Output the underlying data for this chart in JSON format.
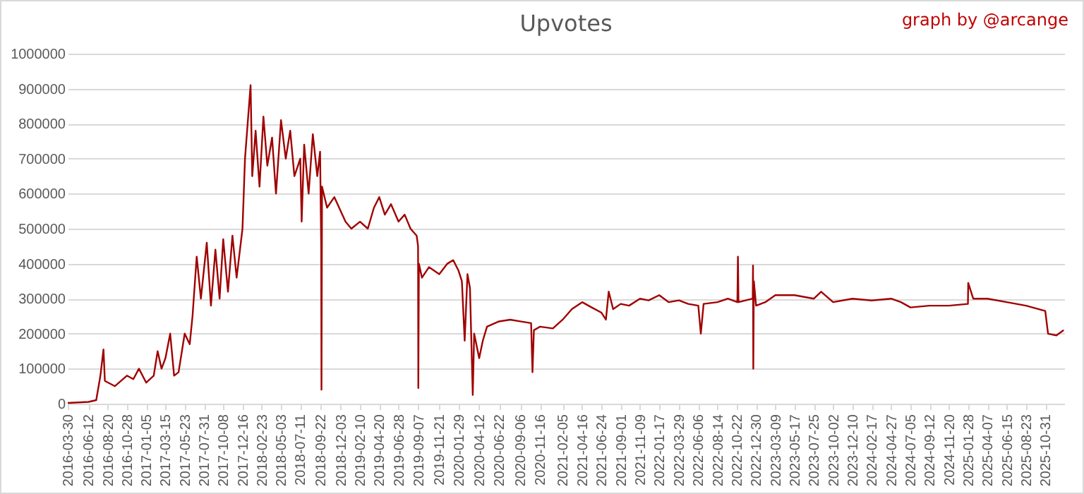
{
  "chart_data": {
    "type": "line",
    "title": "Upvotes",
    "annotations": [
      "graph by @arcange"
    ],
    "x": [
      "2016-03-30",
      "2016-06-12",
      "2016-07-10",
      "2016-07-25",
      "2016-08-05",
      "2016-08-10",
      "2016-09-15",
      "2016-10-28",
      "2016-11-20",
      "2016-12-10",
      "2017-01-05",
      "2017-02-01",
      "2017-02-15",
      "2017-03-01",
      "2017-03-15",
      "2017-04-01",
      "2017-04-15",
      "2017-05-01",
      "2017-05-23",
      "2017-06-10",
      "2017-06-20",
      "2017-07-05",
      "2017-07-20",
      "2017-08-10",
      "2017-08-25",
      "2017-09-10",
      "2017-09-25",
      "2017-10-08",
      "2017-10-25",
      "2017-11-10",
      "2017-11-25",
      "2017-12-16",
      "2017-12-25",
      "2018-01-14",
      "2018-01-20",
      "2018-02-01",
      "2018-02-15",
      "2018-03-01",
      "2018-03-15",
      "2018-04-01",
      "2018-04-15",
      "2018-05-03",
      "2018-05-20",
      "2018-06-05",
      "2018-06-20",
      "2018-07-11",
      "2018-07-16",
      "2018-07-25",
      "2018-08-10",
      "2018-08-25",
      "2018-09-10",
      "2018-09-20",
      "2018-09-24",
      "2018-09-25",
      "2018-09-27",
      "2018-10-15",
      "2018-11-10",
      "2018-12-03",
      "2018-12-20",
      "2019-01-10",
      "2019-02-10",
      "2019-03-10",
      "2019-04-01",
      "2019-04-20",
      "2019-05-10",
      "2019-06-01",
      "2019-06-28",
      "2019-07-20",
      "2019-08-10",
      "2019-09-01",
      "2019-09-06",
      "2019-09-07",
      "2019-09-09",
      "2019-09-20",
      "2019-10-15",
      "2019-11-21",
      "2019-12-20",
      "2020-01-10",
      "2020-01-29",
      "2020-02-10",
      "2020-02-20",
      "2020-03-01",
      "2020-03-10",
      "2020-03-20",
      "2020-03-25",
      "2020-04-12",
      "2020-04-25",
      "2020-05-10",
      "2020-06-22",
      "2020-08-01",
      "2020-09-06",
      "2020-10-15",
      "2020-10-20",
      "2020-10-25",
      "2020-11-16",
      "2021-01-01",
      "2021-02-05",
      "2021-03-10",
      "2021-04-16",
      "2021-05-20",
      "2021-06-24",
      "2021-07-10",
      "2021-07-20",
      "2021-08-05",
      "2021-09-01",
      "2021-10-01",
      "2021-11-09",
      "2021-12-10",
      "2022-01-17",
      "2022-02-20",
      "2022-03-29",
      "2022-05-01",
      "2022-06-06",
      "2022-06-15",
      "2022-06-25",
      "2022-08-14",
      "2022-09-20",
      "2022-10-24",
      "2022-10-26",
      "2022-10-28",
      "2022-12-18",
      "2022-12-19",
      "2022-12-20",
      "2022-12-22",
      "2022-12-30",
      "2023-02-01",
      "2023-03-09",
      "2023-05-17",
      "2023-07-25",
      "2023-08-20",
      "2023-10-02",
      "2023-12-10",
      "2024-02-17",
      "2024-04-27",
      "2024-06-01",
      "2024-07-05",
      "2024-09-12",
      "2024-11-20",
      "2025-01-27",
      "2025-01-28",
      "2025-02-15",
      "2025-04-07",
      "2025-06-15",
      "2025-08-23",
      "2025-10-31",
      "2025-11-10",
      "2025-12-10",
      "2026-01-05"
    ],
    "series": [
      {
        "color": "#a00000",
        "values": [
          2000,
          5000,
          10000,
          80000,
          155000,
          65000,
          50000,
          80000,
          70000,
          100000,
          60000,
          80000,
          150000,
          100000,
          130000,
          200000,
          80000,
          90000,
          200000,
          170000,
          250000,
          420000,
          300000,
          460000,
          280000,
          440000,
          300000,
          470000,
          320000,
          480000,
          360000,
          500000,
          700000,
          910000,
          650000,
          780000,
          620000,
          820000,
          680000,
          760000,
          600000,
          810000,
          700000,
          780000,
          650000,
          700000,
          520000,
          740000,
          600000,
          770000,
          650000,
          720000,
          450000,
          40000,
          620000,
          560000,
          590000,
          550000,
          520000,
          500000,
          520000,
          500000,
          560000,
          590000,
          540000,
          570000,
          520000,
          540000,
          500000,
          480000,
          450000,
          45000,
          400000,
          360000,
          390000,
          370000,
          400000,
          410000,
          380000,
          350000,
          180000,
          370000,
          330000,
          25000,
          200000,
          130000,
          180000,
          220000,
          235000,
          240000,
          235000,
          230000,
          90000,
          210000,
          220000,
          215000,
          240000,
          270000,
          290000,
          275000,
          260000,
          240000,
          320000,
          270000,
          285000,
          280000,
          300000,
          295000,
          310000,
          290000,
          295000,
          285000,
          280000,
          200000,
          285000,
          290000,
          300000,
          290000,
          420000,
          290000,
          300000,
          395000,
          100000,
          350000,
          280000,
          290000,
          310000,
          310000,
          300000,
          320000,
          290000,
          300000,
          295000,
          300000,
          290000,
          275000,
          280000,
          280000,
          285000,
          345000,
          300000,
          300000,
          290000,
          280000,
          265000,
          200000,
          195000,
          210000
        ]
      }
    ],
    "xlim": [
      "2016-03-30",
      "2026-01-07"
    ],
    "xticks": [
      "2016-03-30",
      "2016-06-12",
      "2016-08-20",
      "2016-10-28",
      "2017-01-05",
      "2017-03-15",
      "2017-05-23",
      "2017-07-31",
      "2017-10-08",
      "2017-12-16",
      "2018-02-23",
      "2018-05-03",
      "2018-07-11",
      "2018-09-22",
      "2018-12-03",
      "2019-02-10",
      "2019-04-20",
      "2019-06-28",
      "2019-09-07",
      "2019-11-21",
      "2020-01-29",
      "2020-04-12",
      "2020-06-22",
      "2020-09-06",
      "2020-11-16",
      "2021-02-05",
      "2021-04-16",
      "2021-06-24",
      "2021-09-01",
      "2021-11-09",
      "2022-01-17",
      "2022-03-29",
      "2022-06-06",
      "2022-08-14",
      "2022-10-22",
      "2022-12-30",
      "2023-03-09",
      "2023-05-17",
      "2023-07-25",
      "2023-10-02",
      "2023-12-10",
      "2024-02-17",
      "2024-04-27",
      "2024-07-05",
      "2024-09-12",
      "2024-11-20",
      "2025-01-28",
      "2025-04-07",
      "2025-06-15",
      "2025-08-23",
      "2025-10-31"
    ],
    "ylim": [
      0,
      1000000
    ],
    "yticks": [
      0,
      100000,
      200000,
      300000,
      400000,
      500000,
      600000,
      700000,
      800000,
      900000,
      1000000
    ],
    "grid": "y",
    "marker": "none",
    "line_style": "solid"
  }
}
